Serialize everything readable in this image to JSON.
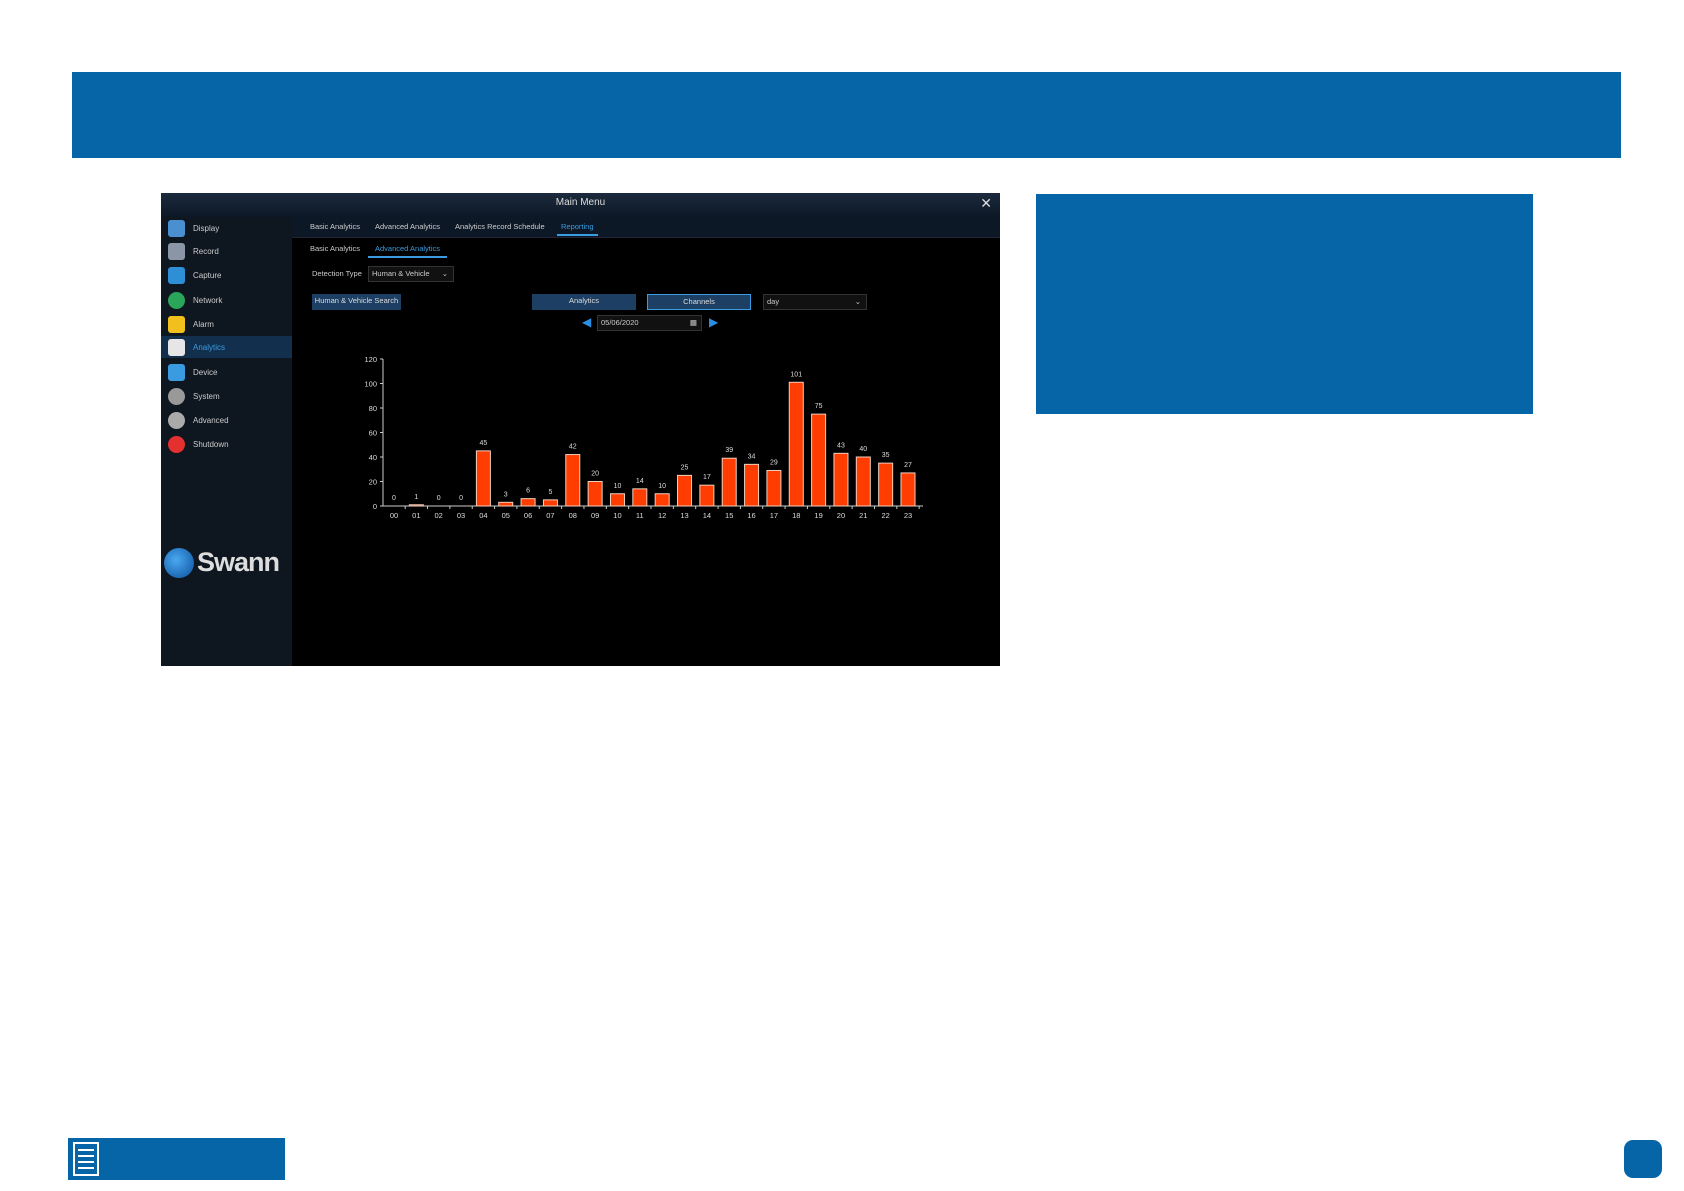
{
  "window": {
    "title": "Main Menu"
  },
  "sidebar": {
    "items": [
      {
        "label": "Display",
        "icon": "display-icon",
        "color": "#4a8fd0"
      },
      {
        "label": "Record",
        "icon": "record-icon",
        "color": "#8a96a5"
      },
      {
        "label": "Capture",
        "icon": "camera-icon",
        "color": "#2f8fd6"
      },
      {
        "label": "Network",
        "icon": "network-icon",
        "color": "#2aa55a"
      },
      {
        "label": "Alarm",
        "icon": "alarm-icon",
        "color": "#f2c01c"
      },
      {
        "label": "Analytics",
        "icon": "analytics-icon",
        "color": "#e6e6e6",
        "active": true
      },
      {
        "label": "Device",
        "icon": "device-icon",
        "color": "#3a9be0"
      },
      {
        "label": "System",
        "icon": "gear-icon",
        "color": "#999"
      },
      {
        "label": "Advanced",
        "icon": "mouse-icon",
        "color": "#aaa"
      },
      {
        "label": "Shutdown",
        "icon": "power-icon",
        "color": "#e53030"
      }
    ],
    "logo": "Swann"
  },
  "tabs": [
    "Basic Analytics",
    "Advanced Analytics",
    "Analytics Record Schedule",
    "Reporting"
  ],
  "active_tab": "Reporting",
  "subtabs": [
    "Basic Analytics",
    "Advanced Analytics"
  ],
  "active_subtab": "Advanced Analytics",
  "detection": {
    "label": "Detection Type",
    "value": "Human & Vehicle"
  },
  "buttons": {
    "search": "Human & Vehicle Search",
    "analytics": "Analytics",
    "channels": "Channels"
  },
  "period": {
    "value": "day"
  },
  "date": {
    "value": "05/06/2020"
  },
  "chart_data": {
    "type": "bar",
    "categories": [
      "00",
      "01",
      "02",
      "03",
      "04",
      "05",
      "06",
      "07",
      "08",
      "09",
      "10",
      "11",
      "12",
      "13",
      "14",
      "15",
      "16",
      "17",
      "18",
      "19",
      "20",
      "21",
      "22",
      "23"
    ],
    "values": [
      0,
      1,
      0,
      0,
      45,
      3,
      6,
      5,
      42,
      20,
      10,
      14,
      10,
      25,
      17,
      39,
      34,
      29,
      101,
      75,
      43,
      40,
      35,
      27
    ],
    "yticks": [
      0,
      20,
      40,
      60,
      80,
      100,
      120
    ],
    "ylim": [
      0,
      120
    ],
    "bar_color": "#ff3d00",
    "grid": false
  }
}
